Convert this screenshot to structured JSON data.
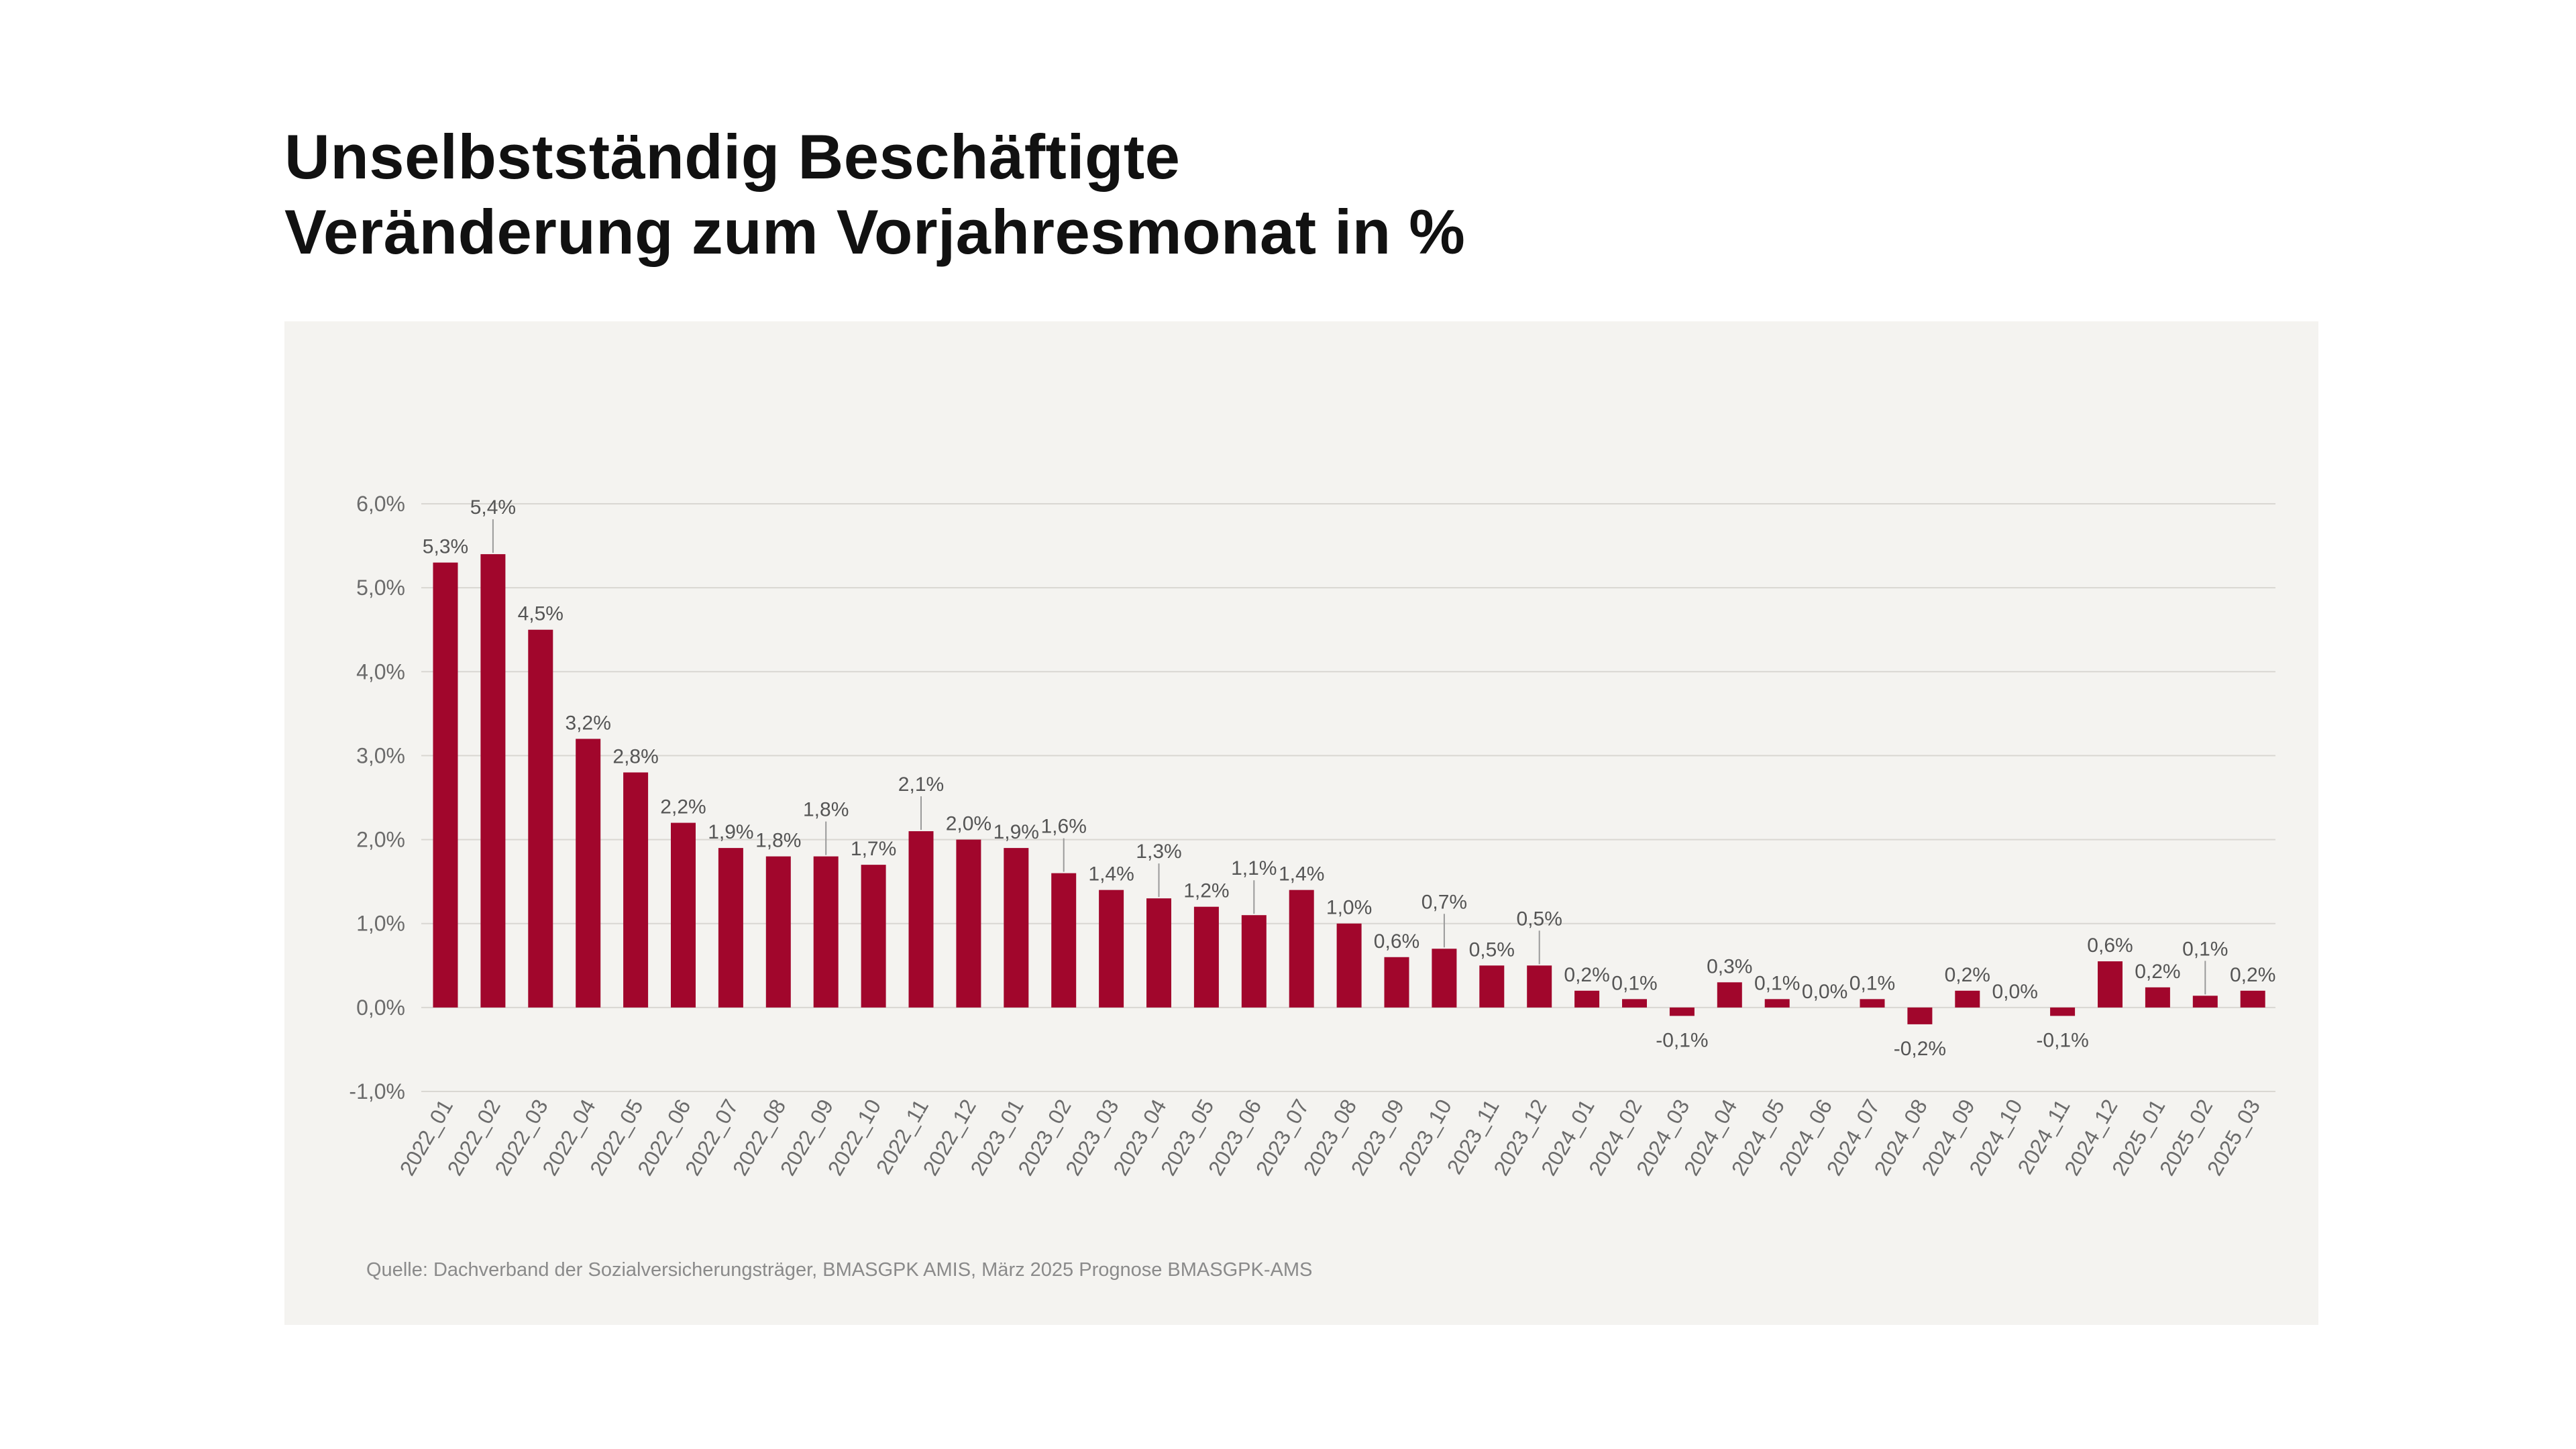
{
  "header": {
    "title_line1": "Unselbstständig Beschäftigte",
    "title_line2": "Veränderung zum Vorjahresmonat in %"
  },
  "footer": {
    "source": "Quelle: Dachverband der Sozialversicherungsträger, BMASGPK AMIS, März 2025 Prognose BMASGPK-AMS"
  },
  "colors": {
    "bar": "#a1062c",
    "grid": "#d9d7d2",
    "axis_text": "#6b6b6b",
    "label_text": "#555555"
  },
  "chart_data": {
    "type": "bar",
    "title": "Unselbstständig Beschäftigte – Veränderung zum Vorjahresmonat in %",
    "xlabel": "",
    "ylabel": "",
    "ylim": [
      -1.0,
      6.0
    ],
    "yticks": [
      -1.0,
      0.0,
      1.0,
      2.0,
      3.0,
      4.0,
      5.0,
      6.0
    ],
    "ytick_labels": [
      "-1,0%",
      "0,0%",
      "1,0%",
      "2,0%",
      "3,0%",
      "4,0%",
      "5,0%",
      "6,0%"
    ],
    "grid": true,
    "categories": [
      "2022_01",
      "2022_02",
      "2022_03",
      "2022_04",
      "2022_05",
      "2022_06",
      "2022_07",
      "2022_08",
      "2022_09",
      "2022_10",
      "2022_11",
      "2022_12",
      "2023_01",
      "2023_02",
      "2023_03",
      "2023_04",
      "2023_05",
      "2023_06",
      "2023_07",
      "2023_08",
      "2023_09",
      "2023_10",
      "2023_11",
      "2023_12",
      "2024_01",
      "2024_02",
      "2024_03",
      "2024_04",
      "2024_05",
      "2024_06",
      "2024_07",
      "2024_08",
      "2024_09",
      "2024_10",
      "2024_11",
      "2024_12",
      "2025_01",
      "2025_02",
      "2025_03"
    ],
    "values": [
      5.3,
      5.4,
      4.5,
      3.2,
      2.8,
      2.2,
      1.9,
      1.8,
      1.8,
      1.7,
      2.1,
      2.0,
      1.9,
      1.6,
      1.4,
      1.3,
      1.2,
      1.1,
      1.4,
      1.0,
      0.6,
      0.7,
      0.5,
      0.5,
      0.2,
      0.1,
      -0.1,
      0.3,
      0.1,
      0.0,
      0.1,
      -0.2,
      0.2,
      0.0,
      -0.1,
      0.55,
      0.24,
      0.14,
      0.2
    ],
    "data_labels": [
      "5,3%",
      "5,4%",
      "4,5%",
      "3,2%",
      "2,8%",
      "2,2%",
      "1,9%",
      "1,8%",
      "1,8%",
      "1,7%",
      "2,1%",
      "2,0%",
      "1,9%",
      "1,6%",
      "1,4%",
      "1,3%",
      "1,2%",
      "1,1%",
      "1,4%",
      "1,0%",
      "0,6%",
      "0,7%",
      "0,5%",
      "0,5%",
      "0,2%",
      "0,1%",
      "-0,1%",
      "0,3%",
      "0,1%",
      "0,0%",
      "0,1%",
      "-0,2%",
      "0,2%",
      "0,0%",
      "-0,1%",
      "0,6%",
      "0,2%",
      "0,1%",
      "0,2%"
    ],
    "leader_lines": [
      1,
      8,
      10,
      13,
      15,
      17,
      21,
      23,
      37
    ]
  }
}
